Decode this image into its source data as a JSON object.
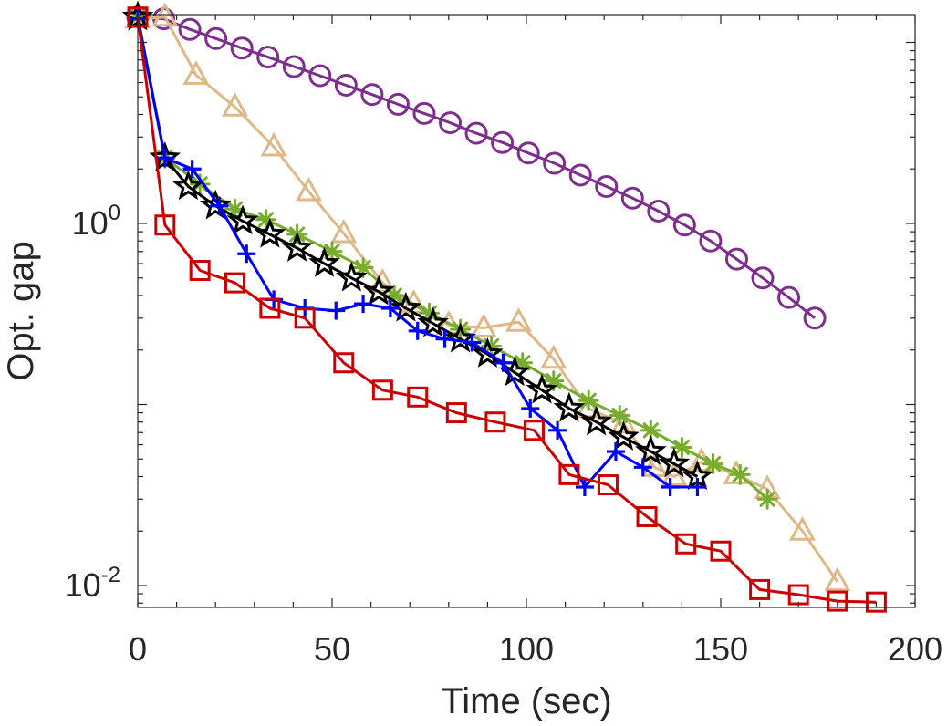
{
  "chart_data": {
    "type": "line",
    "title": "",
    "xlabel": "Time (sec)",
    "ylabel": "Opt. gap",
    "xlim": [
      0,
      200
    ],
    "ylim": [
      0.0075,
      16
    ],
    "yscale": "log",
    "grid": false,
    "x_ticks": [
      {
        "value": 0,
        "label": "0"
      },
      {
        "value": 50,
        "label": "50"
      },
      {
        "value": 100,
        "label": "100"
      },
      {
        "value": 150,
        "label": "150"
      },
      {
        "value": 200,
        "label": "200"
      }
    ],
    "y_ticks": [
      {
        "value": 1,
        "base": "10",
        "exp": "0"
      },
      {
        "value": 0.01,
        "base": "10",
        "exp": "-2"
      }
    ],
    "series": [
      {
        "name": "purple-circle",
        "color": "#7e2f8e",
        "marker": "circle",
        "x": [
          0,
          6.7,
          13.4,
          20.1,
          26.8,
          33.5,
          40.2,
          46.9,
          53.6,
          60.3,
          67,
          73.7,
          80.4,
          87.1,
          93.8,
          100.5,
          107.2,
          113.9,
          120.6,
          127.3,
          134,
          140.7,
          147.4,
          154.1,
          160.8,
          167.5,
          174.2
        ],
        "y": [
          13.8,
          13.5,
          11.8,
          10.5,
          9.3,
          8.3,
          7.35,
          6.55,
          5.8,
          5.15,
          4.55,
          4.05,
          3.6,
          3.15,
          2.8,
          2.45,
          2.15,
          1.85,
          1.6,
          1.38,
          1.17,
          0.98,
          0.8,
          0.635,
          0.5,
          0.39,
          0.3
        ]
      },
      {
        "name": "tan-triangle",
        "color": "#deb887",
        "marker": "triangle",
        "x": [
          0,
          7,
          15,
          25,
          35,
          44,
          53,
          63,
          71,
          80,
          89,
          98,
          107,
          116,
          125,
          133,
          138,
          145,
          154,
          162,
          171,
          180
        ],
        "y": [
          13.5,
          13.8,
          6.6,
          4.4,
          2.65,
          1.5,
          0.88,
          0.47,
          0.36,
          0.275,
          0.265,
          0.285,
          0.178,
          0.095,
          0.078,
          0.045,
          0.04,
          0.048,
          0.041,
          0.034,
          0.02,
          0.0105
        ]
      },
      {
        "name": "green-asterisk",
        "color": "#77ac30",
        "marker": "asterisk",
        "x": [
          0,
          7,
          16,
          25,
          33,
          41,
          50,
          58,
          66,
          75,
          83,
          91,
          99,
          107,
          116,
          124,
          132,
          140,
          148,
          155,
          162
        ],
        "y": [
          13.8,
          2.3,
          1.65,
          1.2,
          1.05,
          0.87,
          0.7,
          0.57,
          0.4,
          0.32,
          0.26,
          0.21,
          0.17,
          0.135,
          0.105,
          0.087,
          0.072,
          0.058,
          0.047,
          0.041,
          0.03
        ]
      },
      {
        "name": "black-star",
        "color": "#000000",
        "marker": "star",
        "x": [
          0,
          7,
          13,
          20,
          27,
          34,
          41,
          48,
          55,
          62,
          69,
          76,
          83,
          90,
          97,
          104,
          111,
          118,
          125,
          132,
          138,
          144
        ],
        "y": [
          13.8,
          2.3,
          1.6,
          1.25,
          1.03,
          0.87,
          0.73,
          0.6,
          0.5,
          0.42,
          0.34,
          0.28,
          0.23,
          0.19,
          0.15,
          0.12,
          0.095,
          0.08,
          0.066,
          0.055,
          0.047,
          0.04
        ]
      },
      {
        "name": "blue-plus",
        "color": "#0000ff",
        "marker": "plus",
        "x": [
          0,
          7,
          14,
          21,
          28,
          35,
          43,
          51,
          58,
          65,
          72,
          79,
          86,
          94,
          101,
          108,
          115,
          123,
          130,
          137,
          144
        ],
        "y": [
          13.5,
          2.3,
          2.0,
          1.25,
          0.68,
          0.38,
          0.34,
          0.33,
          0.36,
          0.34,
          0.255,
          0.23,
          0.22,
          0.17,
          0.095,
          0.072,
          0.035,
          0.055,
          0.045,
          0.035,
          0.035
        ]
      },
      {
        "name": "red-square",
        "color": "#cc0000",
        "marker": "square",
        "x": [
          0,
          7,
          16,
          25,
          34,
          43,
          53,
          63,
          72,
          82,
          92,
          102,
          111,
          121,
          131,
          141,
          150,
          160,
          170,
          180,
          190
        ],
        "y": [
          13.8,
          0.98,
          0.55,
          0.47,
          0.34,
          0.3,
          0.17,
          0.12,
          0.11,
          0.09,
          0.08,
          0.072,
          0.041,
          0.036,
          0.024,
          0.017,
          0.0155,
          0.0095,
          0.0089,
          0.0082,
          0.0081
        ]
      }
    ]
  }
}
